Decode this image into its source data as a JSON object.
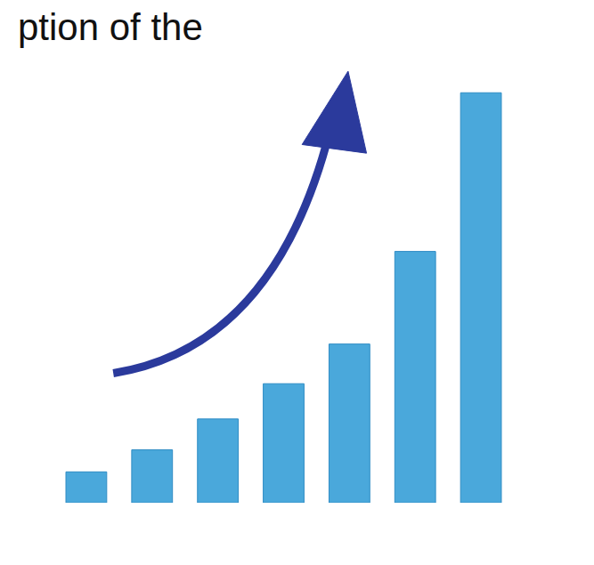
{
  "chart_data": {
    "type": "bar",
    "title": "ption of the",
    "categories": [
      null,
      null,
      null,
      null,
      null,
      null,
      null
    ],
    "values": [
      35,
      60,
      95,
      135,
      180,
      285,
      465
    ],
    "color": "#4aa8db",
    "grid": false,
    "tick_labels": false
  }
}
